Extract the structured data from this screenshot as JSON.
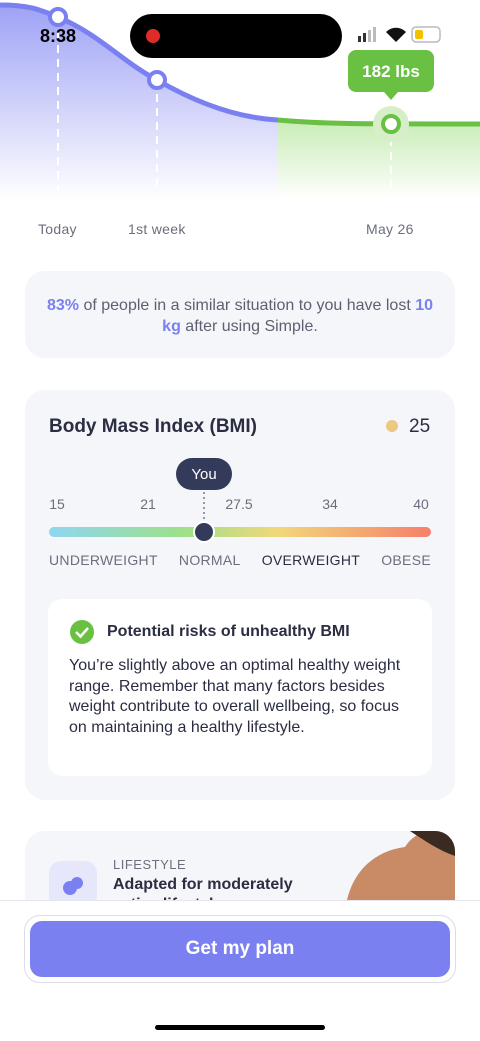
{
  "status_bar": {
    "time": "8:38"
  },
  "weight_chart": {
    "tooltip": "182 lbs",
    "labels": [
      "Today",
      "1st week",
      "May 26"
    ]
  },
  "stat_card": {
    "percent": "83%",
    "text_1": "of people in a similar situation to you have lost",
    "amount": "10 kg",
    "text_2": "after using Simple."
  },
  "bmi": {
    "title": "Body Mass Index (BMI)",
    "value": 25,
    "marker_label": "You",
    "ticks": [
      15,
      21,
      27.5,
      34,
      40
    ],
    "categories": [
      "UNDERWEIGHT",
      "NORMAL",
      "OVERWEIGHT",
      "OBESE"
    ],
    "risk_title": "Potential risks of unhealthy BMI",
    "risk_text": "You’re slightly above an optimal healthy weight range. Remember that many factors besides weight contribute to overall wellbeing, so focus on maintaining a healthy lifestyle."
  },
  "lifestyle": {
    "label": "LIFESTYLE",
    "title": "Adapted for moderately active lifestyle"
  },
  "cta": "Get my plan"
}
